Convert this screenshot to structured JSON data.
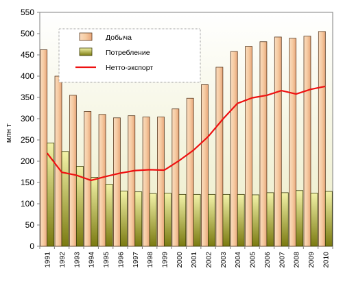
{
  "chart_data": {
    "type": "bar",
    "categories": [
      "1991",
      "1992",
      "1993",
      "1994",
      "1995",
      "1996",
      "1997",
      "1998",
      "1999",
      "2000",
      "2001",
      "2002",
      "2003",
      "2004",
      "2005",
      "2006",
      "2007",
      "2008",
      "2009",
      "2010"
    ],
    "series": [
      {
        "name": "Добыча",
        "type": "bar",
        "values": [
          462,
          400,
          355,
          317,
          310,
          302,
          307,
          304,
          304,
          323,
          348,
          380,
          421,
          458,
          470,
          481,
          492,
          489,
          494,
          505
        ]
      },
      {
        "name": "Потребление",
        "type": "bar",
        "values": [
          243,
          223,
          188,
          162,
          146,
          130,
          128,
          124,
          125,
          122,
          122,
          122,
          122,
          122,
          121,
          126,
          126,
          131,
          125,
          129
        ]
      },
      {
        "name": "Нетто-экспорт",
        "type": "line",
        "values": [
          219,
          174,
          167,
          155,
          164,
          172,
          178,
          180,
          179,
          201,
          226,
          258,
          299,
          336,
          349,
          355,
          366,
          358,
          369,
          376
        ]
      }
    ],
    "ylabel": "млн т",
    "ylim": [
      0,
      550
    ],
    "yticks": [
      0,
      50,
      100,
      150,
      200,
      250,
      300,
      350,
      400,
      450,
      500,
      550
    ],
    "grid": false,
    "legend_position": "top-left",
    "colors": {
      "production_fill_top": "#f6cba2",
      "production_fill_bottom": "#e7a67a",
      "production_stroke": "#5a3a20",
      "consumption_fill_top": "#f3f3a8",
      "consumption_fill_bottom": "#7a7a10",
      "consumption_stroke": "#3a3a0a",
      "net_export_line": "#ee1111",
      "plot_bg_top": "#ffffff",
      "plot_bg_bottom": "#ececc6",
      "legend_bg": "#ffffff"
    }
  }
}
